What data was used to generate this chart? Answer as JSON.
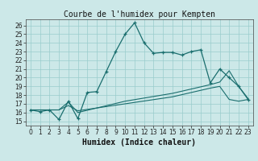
{
  "title": "Courbe de l'humidex pour Kempten",
  "xlabel": "Humidex (Indice chaleur)",
  "bg_color": "#cce8e8",
  "grid_color": "#99cccc",
  "line_color": "#1a6e6e",
  "xlim": [
    -0.5,
    23.5
  ],
  "ylim": [
    14.5,
    26.7
  ],
  "yticks": [
    15,
    16,
    17,
    18,
    19,
    20,
    21,
    22,
    23,
    24,
    25,
    26
  ],
  "xticks": [
    0,
    1,
    2,
    3,
    4,
    5,
    6,
    7,
    8,
    9,
    10,
    11,
    12,
    13,
    14,
    15,
    16,
    17,
    18,
    19,
    20,
    21,
    22,
    23
  ],
  "line1_x": [
    0,
    1,
    2,
    3,
    4,
    5,
    6,
    7,
    8,
    9,
    10,
    11,
    12,
    13,
    14,
    15,
    16,
    17,
    18,
    19,
    20,
    21,
    22,
    23
  ],
  "line1_y": [
    16.3,
    16.1,
    16.3,
    15.2,
    17.3,
    15.3,
    18.3,
    18.4,
    20.7,
    23.0,
    25.0,
    26.3,
    24.0,
    22.8,
    22.9,
    22.9,
    22.6,
    23.0,
    23.2,
    19.4,
    21.0,
    20.0,
    19.0,
    17.5
  ],
  "line2_x": [
    0,
    3,
    4,
    5,
    10,
    15,
    19,
    20,
    21,
    22,
    23
  ],
  "line2_y": [
    16.3,
    16.3,
    17.2,
    16.0,
    17.3,
    18.2,
    19.2,
    19.5,
    20.8,
    19.0,
    17.6
  ],
  "line3_x": [
    0,
    3,
    4,
    5,
    10,
    15,
    19,
    20,
    21,
    22,
    23
  ],
  "line3_y": [
    16.3,
    16.3,
    16.8,
    16.2,
    17.0,
    17.8,
    18.8,
    19.0,
    17.5,
    17.3,
    17.5
  ],
  "title_fontsize": 7,
  "xlabel_fontsize": 7,
  "tick_fontsize": 5.5
}
